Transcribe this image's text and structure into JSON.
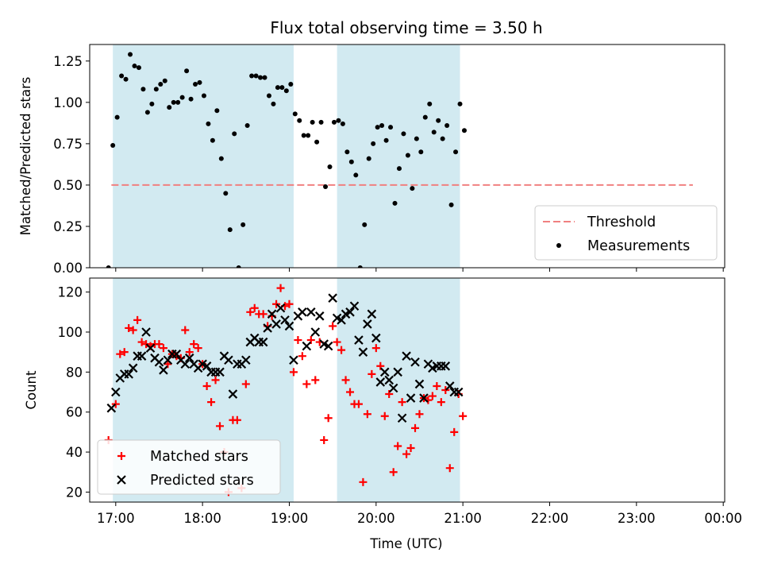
{
  "figure": {
    "title": "Flux total observing time = 3.50 h",
    "xlabel": "Time (UTC)",
    "x_ticks": [
      "17:00",
      "18:00",
      "19:00",
      "20:00",
      "21:00",
      "22:00",
      "23:00",
      "00:00"
    ]
  },
  "colors": {
    "shading": "#add8e6",
    "threshold": "#f08080",
    "measurements": "#000000",
    "matched": "#ff0000",
    "predicted": "#000000"
  },
  "chart_data": [
    {
      "type": "scatter",
      "ylabel": "Matched/Predicted stars",
      "xlim": [
        "16:42",
        "00:01"
      ],
      "ylim": [
        0,
        1.35
      ],
      "y_ticks": [
        "0.00",
        "0.25",
        "0.50",
        "0.75",
        "1.00",
        "1.25"
      ],
      "shaded_intervals": [
        [
          "16:58",
          "19:03"
        ],
        [
          "19:33",
          "20:58"
        ]
      ],
      "legend": {
        "position": "lower-right",
        "entries": [
          "Threshold",
          "Measurements"
        ]
      },
      "threshold": {
        "name": "Threshold",
        "y": 0.5,
        "x_range": [
          "16:57",
          "23:39"
        ]
      },
      "series": [
        {
          "name": "Measurements",
          "marker": "dot",
          "points": [
            [
              "16:55",
              0.0
            ],
            [
              "16:58",
              0.74
            ],
            [
              "17:01",
              0.91
            ],
            [
              "17:04",
              1.16
            ],
            [
              "17:07",
              1.14
            ],
            [
              "17:10",
              1.29
            ],
            [
              "17:13",
              1.22
            ],
            [
              "17:16",
              1.21
            ],
            [
              "17:19",
              1.08
            ],
            [
              "17:22",
              0.94
            ],
            [
              "17:25",
              0.99
            ],
            [
              "17:28",
              1.08
            ],
            [
              "17:31",
              1.11
            ],
            [
              "17:34",
              1.13
            ],
            [
              "17:37",
              0.97
            ],
            [
              "17:40",
              1.0
            ],
            [
              "17:43",
              1.0
            ],
            [
              "17:46",
              1.03
            ],
            [
              "17:49",
              1.19
            ],
            [
              "17:52",
              1.02
            ],
            [
              "17:55",
              1.11
            ],
            [
              "17:58",
              1.12
            ],
            [
              "18:01",
              1.04
            ],
            [
              "18:04",
              0.87
            ],
            [
              "18:07",
              0.77
            ],
            [
              "18:10",
              0.95
            ],
            [
              "18:13",
              0.66
            ],
            [
              "18:16",
              0.45
            ],
            [
              "18:19",
              0.23
            ],
            [
              "18:22",
              0.81
            ],
            [
              "18:25",
              0.0
            ],
            [
              "18:28",
              0.26
            ],
            [
              "18:31",
              0.86
            ],
            [
              "18:34",
              1.16
            ],
            [
              "18:37",
              1.16
            ],
            [
              "18:40",
              1.15
            ],
            [
              "18:43",
              1.15
            ],
            [
              "18:46",
              1.04
            ],
            [
              "18:49",
              0.99
            ],
            [
              "18:52",
              1.09
            ],
            [
              "18:55",
              1.09
            ],
            [
              "18:58",
              1.07
            ],
            [
              "19:01",
              1.11
            ],
            [
              "19:04",
              0.93
            ],
            [
              "19:07",
              0.89
            ],
            [
              "19:10",
              0.8
            ],
            [
              "19:13",
              0.8
            ],
            [
              "19:16",
              0.88
            ],
            [
              "19:19",
              0.76
            ],
            [
              "19:22",
              0.88
            ],
            [
              "19:25",
              0.49
            ],
            [
              "19:28",
              0.61
            ],
            [
              "19:31",
              0.88
            ],
            [
              "19:34",
              0.89
            ],
            [
              "19:37",
              0.87
            ],
            [
              "19:40",
              0.7
            ],
            [
              "19:43",
              0.64
            ],
            [
              "19:46",
              0.56
            ],
            [
              "19:49",
              0.0
            ],
            [
              "19:52",
              0.26
            ],
            [
              "19:55",
              0.66
            ],
            [
              "19:58",
              0.75
            ],
            [
              "20:01",
              0.85
            ],
            [
              "20:04",
              0.86
            ],
            [
              "20:07",
              0.77
            ],
            [
              "20:10",
              0.85
            ],
            [
              "20:13",
              0.39
            ],
            [
              "20:16",
              0.6
            ],
            [
              "20:19",
              0.81
            ],
            [
              "20:22",
              0.68
            ],
            [
              "20:25",
              0.48
            ],
            [
              "20:28",
              0.78
            ],
            [
              "20:31",
              0.7
            ],
            [
              "20:34",
              0.91
            ],
            [
              "20:37",
              0.99
            ],
            [
              "20:40",
              0.82
            ],
            [
              "20:43",
              0.89
            ],
            [
              "20:46",
              0.78
            ],
            [
              "20:49",
              0.86
            ],
            [
              "20:52",
              0.38
            ],
            [
              "20:55",
              0.7
            ],
            [
              "20:58",
              0.99
            ],
            [
              "21:01",
              0.83
            ]
          ]
        }
      ]
    },
    {
      "type": "scatter",
      "ylabel": "Count",
      "xlim": [
        "16:42",
        "00:01"
      ],
      "ylim": [
        15,
        127
      ],
      "y_ticks": [
        "20",
        "40",
        "60",
        "80",
        "100",
        "120"
      ],
      "shaded_intervals": [
        [
          "16:58",
          "19:03"
        ],
        [
          "19:33",
          "20:58"
        ]
      ],
      "legend": {
        "position": "lower-left",
        "entries": [
          "Matched stars",
          "Predicted stars"
        ]
      },
      "series": [
        {
          "name": "Matched stars",
          "marker": "plus",
          "points": [
            [
              "16:55",
              46
            ],
            [
              "17:00",
              64
            ],
            [
              "17:03",
              89
            ],
            [
              "17:06",
              90
            ],
            [
              "17:09",
              102
            ],
            [
              "17:12",
              101
            ],
            [
              "17:15",
              106
            ],
            [
              "17:18",
              95
            ],
            [
              "17:21",
              94
            ],
            [
              "17:24",
              93
            ],
            [
              "17:27",
              94
            ],
            [
              "17:30",
              94
            ],
            [
              "17:33",
              92
            ],
            [
              "17:36",
              84
            ],
            [
              "17:39",
              89
            ],
            [
              "17:42",
              88
            ],
            [
              "17:45",
              87
            ],
            [
              "17:48",
              101
            ],
            [
              "17:51",
              90
            ],
            [
              "17:54",
              94
            ],
            [
              "17:57",
              92
            ],
            [
              "18:00",
              84
            ],
            [
              "18:03",
              73
            ],
            [
              "18:06",
              65
            ],
            [
              "18:09",
              76
            ],
            [
              "18:12",
              53
            ],
            [
              "18:15",
              40
            ],
            [
              "18:18",
              20
            ],
            [
              "18:21",
              56
            ],
            [
              "18:24",
              56
            ],
            [
              "18:27",
              22
            ],
            [
              "18:30",
              74
            ],
            [
              "18:33",
              110
            ],
            [
              "18:36",
              112
            ],
            [
              "18:39",
              109
            ],
            [
              "18:42",
              109
            ],
            [
              "18:45",
              103
            ],
            [
              "18:48",
              108
            ],
            [
              "18:51",
              114
            ],
            [
              "18:54",
              122
            ],
            [
              "18:57",
              113
            ],
            [
              "19:00",
              114
            ],
            [
              "19:03",
              80
            ],
            [
              "19:06",
              96
            ],
            [
              "19:09",
              88
            ],
            [
              "19:12",
              74
            ],
            [
              "19:15",
              96
            ],
            [
              "19:18",
              76
            ],
            [
              "19:21",
              95
            ],
            [
              "19:24",
              46
            ],
            [
              "19:27",
              57
            ],
            [
              "19:30",
              103
            ],
            [
              "19:33",
              95
            ],
            [
              "19:36",
              91
            ],
            [
              "19:39",
              76
            ],
            [
              "19:42",
              70
            ],
            [
              "19:45",
              64
            ],
            [
              "19:48",
              64
            ],
            [
              "19:51",
              25
            ],
            [
              "19:54",
              59
            ],
            [
              "19:57",
              79
            ],
            [
              "20:00",
              92
            ],
            [
              "20:03",
              83
            ],
            [
              "20:06",
              58
            ],
            [
              "20:09",
              69
            ],
            [
              "20:12",
              30
            ],
            [
              "20:15",
              43
            ],
            [
              "20:18",
              65
            ],
            [
              "20:21",
              39
            ],
            [
              "20:24",
              42
            ],
            [
              "20:27",
              52
            ],
            [
              "20:30",
              59
            ],
            [
              "20:33",
              67
            ],
            [
              "20:36",
              66
            ],
            [
              "20:39",
              68
            ],
            [
              "20:42",
              73
            ],
            [
              "20:45",
              65
            ],
            [
              "20:48",
              71
            ],
            [
              "20:51",
              32
            ],
            [
              "20:54",
              50
            ],
            [
              "20:57",
              69
            ],
            [
              "21:00",
              58
            ]
          ]
        },
        {
          "name": "Predicted stars",
          "marker": "x",
          "points": [
            [
              "16:57",
              62
            ],
            [
              "17:00",
              70
            ],
            [
              "17:03",
              77
            ],
            [
              "17:06",
              79
            ],
            [
              "17:09",
              79
            ],
            [
              "17:12",
              82
            ],
            [
              "17:15",
              88
            ],
            [
              "17:18",
              88
            ],
            [
              "17:21",
              100
            ],
            [
              "17:24",
              92
            ],
            [
              "17:27",
              87
            ],
            [
              "17:30",
              85
            ],
            [
              "17:33",
              81
            ],
            [
              "17:36",
              86
            ],
            [
              "17:39",
              89
            ],
            [
              "17:42",
              89
            ],
            [
              "17:45",
              86
            ],
            [
              "17:48",
              84
            ],
            [
              "17:51",
              87
            ],
            [
              "17:54",
              84
            ],
            [
              "17:57",
              82
            ],
            [
              "18:00",
              84
            ],
            [
              "18:03",
              83
            ],
            [
              "18:06",
              80
            ],
            [
              "18:09",
              80
            ],
            [
              "18:12",
              80
            ],
            [
              "18:15",
              88
            ],
            [
              "18:18",
              86
            ],
            [
              "18:21",
              69
            ],
            [
              "18:24",
              84
            ],
            [
              "18:27",
              84
            ],
            [
              "18:30",
              86
            ],
            [
              "18:33",
              95
            ],
            [
              "18:36",
              97
            ],
            [
              "18:39",
              95
            ],
            [
              "18:42",
              95
            ],
            [
              "18:45",
              102
            ],
            [
              "18:48",
              109
            ],
            [
              "18:51",
              104
            ],
            [
              "18:54",
              112
            ],
            [
              "18:57",
              106
            ],
            [
              "19:00",
              103
            ],
            [
              "19:03",
              86
            ],
            [
              "19:06",
              108
            ],
            [
              "19:09",
              110
            ],
            [
              "19:12",
              93
            ],
            [
              "19:15",
              110
            ],
            [
              "19:18",
              100
            ],
            [
              "19:21",
              108
            ],
            [
              "19:24",
              94
            ],
            [
              "19:27",
              93
            ],
            [
              "19:30",
              117
            ],
            [
              "19:33",
              107
            ],
            [
              "19:36",
              106
            ],
            [
              "19:39",
              109
            ],
            [
              "19:42",
              110
            ],
            [
              "19:45",
              113
            ],
            [
              "19:48",
              96
            ],
            [
              "19:51",
              90
            ],
            [
              "19:54",
              104
            ],
            [
              "19:57",
              109
            ],
            [
              "20:00",
              97
            ],
            [
              "20:03",
              75
            ],
            [
              "20:06",
              80
            ],
            [
              "20:09",
              76
            ],
            [
              "20:12",
              72
            ],
            [
              "20:15",
              80
            ],
            [
              "20:18",
              57
            ],
            [
              "20:21",
              88
            ],
            [
              "20:24",
              67
            ],
            [
              "20:27",
              85
            ],
            [
              "20:30",
              74
            ],
            [
              "20:33",
              67
            ],
            [
              "20:36",
              84
            ],
            [
              "20:39",
              82
            ],
            [
              "20:42",
              83
            ],
            [
              "20:45",
              83
            ],
            [
              "20:48",
              83
            ],
            [
              "20:51",
              73
            ],
            [
              "20:54",
              70
            ],
            [
              "20:57",
              70
            ]
          ]
        }
      ]
    }
  ]
}
